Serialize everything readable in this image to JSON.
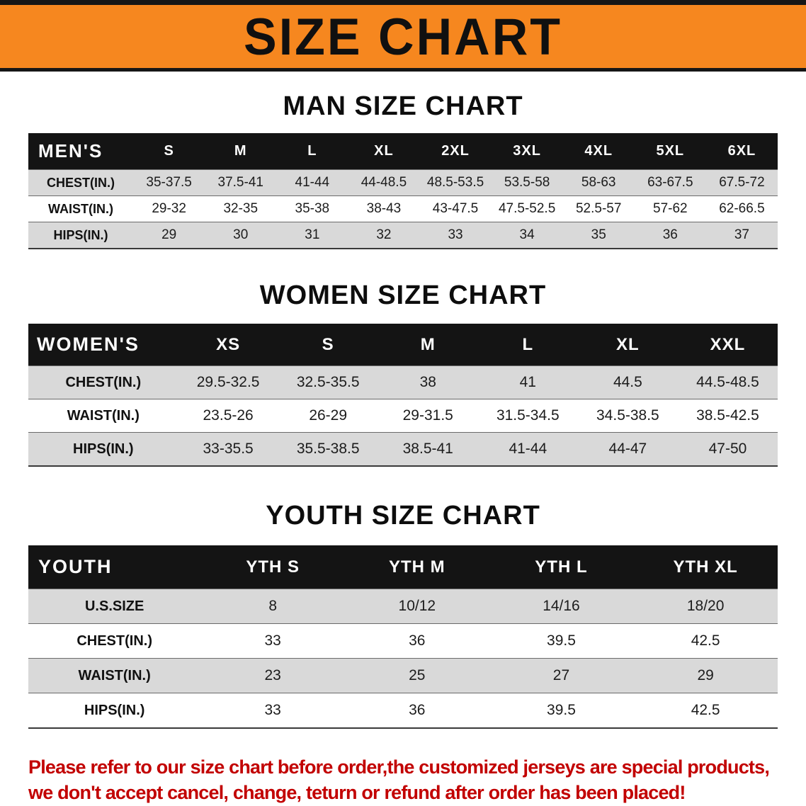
{
  "banner": {
    "title": "SIZE CHART"
  },
  "men": {
    "heading": "MAN SIZE CHART",
    "header": [
      "MEN'S",
      "S",
      "M",
      "L",
      "XL",
      "2XL",
      "3XL",
      "4XL",
      "5XL",
      "6XL"
    ],
    "rows": [
      [
        "CHEST(IN.)",
        "35-37.5",
        "37.5-41",
        "41-44",
        "44-48.5",
        "48.5-53.5",
        "53.5-58",
        "58-63",
        "63-67.5",
        "67.5-72"
      ],
      [
        "WAIST(IN.)",
        "29-32",
        "32-35",
        "35-38",
        "38-43",
        "43-47.5",
        "47.5-52.5",
        "52.5-57",
        "57-62",
        "62-66.5"
      ],
      [
        "HIPS(IN.)",
        "29",
        "30",
        "31",
        "32",
        "33",
        "34",
        "35",
        "36",
        "37"
      ]
    ]
  },
  "women": {
    "heading": "WOMEN SIZE CHART",
    "header": [
      "WOMEN'S",
      "XS",
      "S",
      "M",
      "L",
      "XL",
      "XXL"
    ],
    "rows": [
      [
        "CHEST(IN.)",
        "29.5-32.5",
        "32.5-35.5",
        "38",
        "41",
        "44.5",
        "44.5-48.5"
      ],
      [
        "WAIST(IN.)",
        "23.5-26",
        "26-29",
        "29-31.5",
        "31.5-34.5",
        "34.5-38.5",
        "38.5-42.5"
      ],
      [
        "HIPS(IN.)",
        "33-35.5",
        "35.5-38.5",
        "38.5-41",
        "41-44",
        "44-47",
        "47-50"
      ]
    ]
  },
  "youth": {
    "heading": "YOUTH SIZE CHART",
    "header": [
      "YOUTH",
      "YTH S",
      "YTH M",
      "YTH L",
      "YTH XL"
    ],
    "rows": [
      [
        "U.S.SIZE",
        "8",
        "10/12",
        "14/16",
        "18/20"
      ],
      [
        "CHEST(IN.)",
        "33",
        "36",
        "39.5",
        "42.5"
      ],
      [
        "WAIST(IN.)",
        "23",
        "25",
        "27",
        "29"
      ],
      [
        "HIPS(IN.)",
        "33",
        "36",
        "39.5",
        "42.5"
      ]
    ]
  },
  "note": {
    "line1": "Please refer to our size chart before order,the customized jerseys are special products,",
    "line2": "we don't accept cancel, change, teturn or refund after order has been placed!"
  },
  "colors": {
    "banner_bg": "#f6871f",
    "header_band_bg": "#141414",
    "row_alt_bg": "#d9d9d9",
    "note_text": "#c20000"
  }
}
